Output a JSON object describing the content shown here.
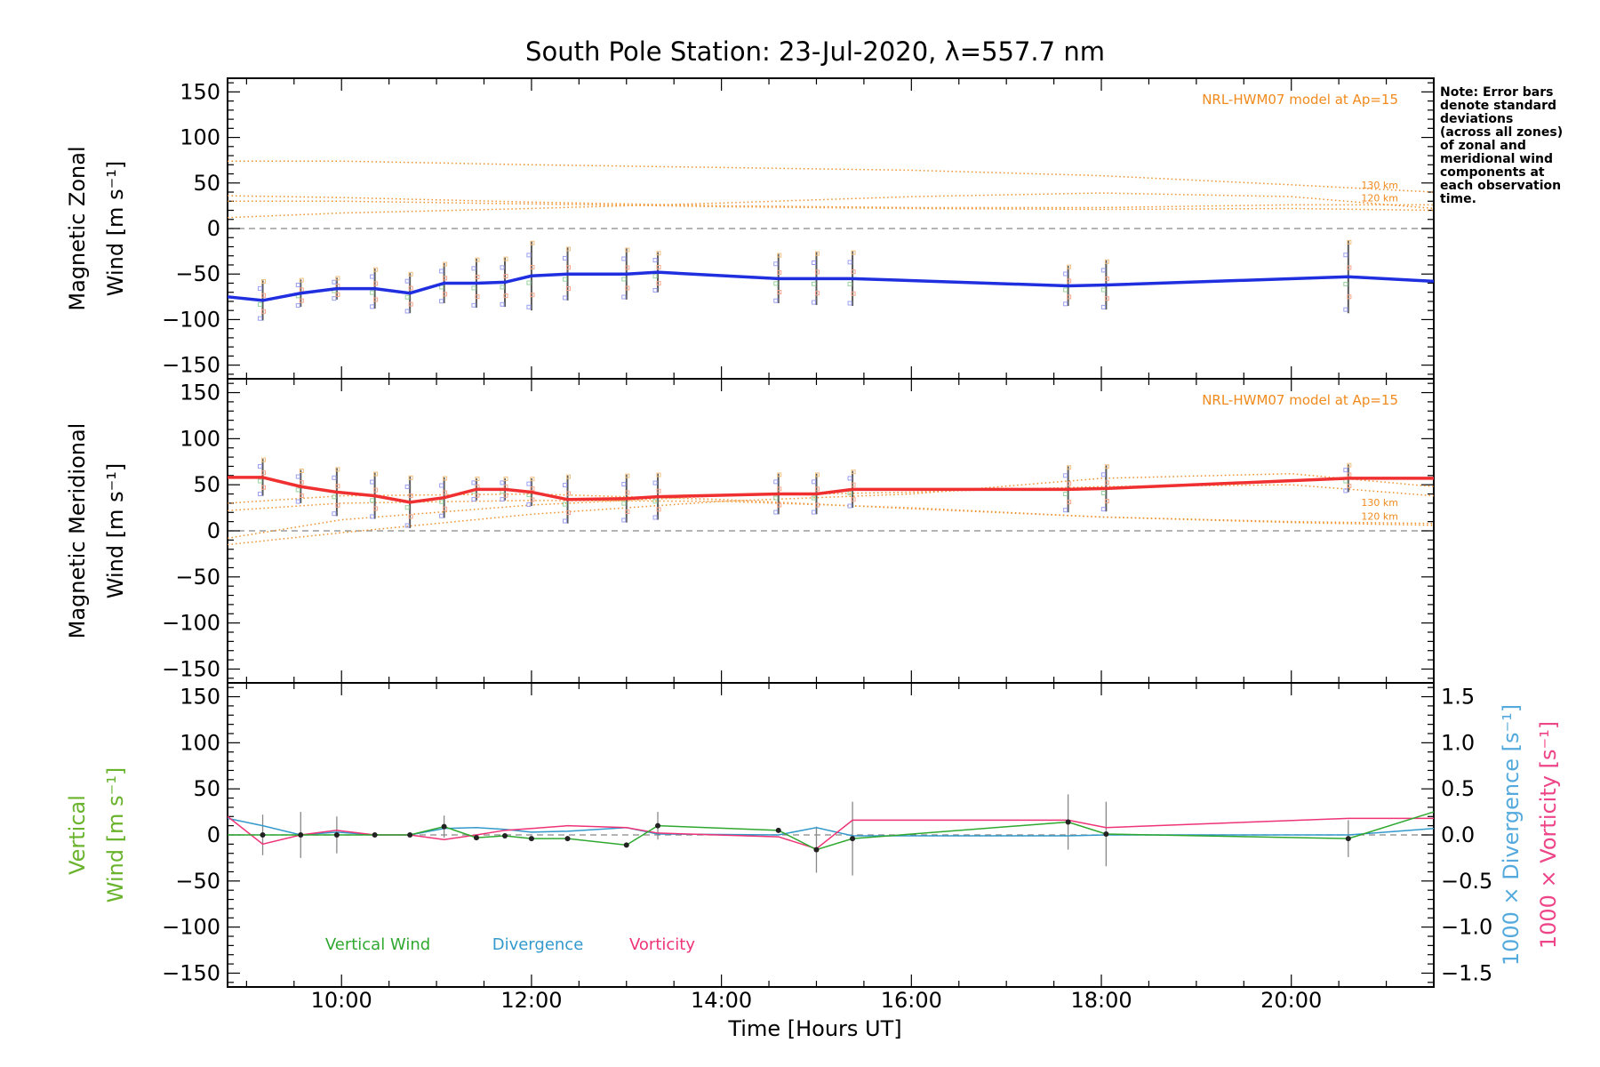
{
  "chart_data": {
    "title": "South Pole Station: 23-Jul-2020, λ=557.7 nm",
    "type": "line",
    "xlabel": "Time [Hours UT]",
    "xlim": [
      8.8,
      21.5
    ],
    "x_ticks": [
      10,
      12,
      14,
      16,
      18,
      20
    ],
    "x_tick_labels": [
      "10:00",
      "12:00",
      "14:00",
      "16:00",
      "18:00",
      "20:00"
    ],
    "y_ticks": [
      -150,
      -100,
      -50,
      0,
      50,
      100,
      150
    ],
    "y_tick_labels": [
      "−150",
      "−100",
      "−50",
      "0",
      "50",
      "100",
      "150"
    ],
    "times": [
      8.8,
      9.17,
      9.57,
      9.95,
      10.35,
      10.72,
      11.08,
      11.42,
      11.72,
      12.0,
      12.38,
      13.0,
      13.33,
      14.6,
      15.0,
      15.38,
      17.65,
      18.05,
      20.6,
      21.5
    ],
    "note": [
      "Note: Error bars",
      "denote standard",
      "deviations",
      "(across all zones)",
      "of zonal and",
      "meridional wind",
      "components at",
      "each observation",
      "time."
    ],
    "panels": [
      {
        "id": "zonal",
        "ylabel_line1": "Magnetic Zonal",
        "ylabel_line2": "Wind [m s⁻¹]",
        "ylim": [
          -165,
          165
        ],
        "model_label": "NRL-HWM07 model at Ap=15",
        "model_km_labels": [
          "130 km",
          "120 km"
        ],
        "series": {
          "name": "Zonal wind",
          "color": "#1f2fe0",
          "values": [
            -75,
            -79,
            -71,
            -66,
            -66,
            -71,
            -60,
            -60,
            -59,
            -52,
            -50,
            -50,
            -48,
            -55,
            -55,
            -55,
            -63,
            -62,
            -53,
            -58
          ],
          "err": [
            40,
            22,
            15,
            12,
            22,
            22,
            22,
            27,
            27,
            38,
            29,
            28,
            22,
            27,
            29,
            30,
            22,
            27,
            40,
            30
          ]
        },
        "model": [
          {
            "name": "model-1",
            "x": [
              8.8,
              10,
              12,
              14,
              16,
              18,
              20,
              21.5
            ],
            "values": [
              74,
              74,
              70,
              67,
              64,
              58,
              48,
              40
            ]
          },
          {
            "name": "model-2",
            "x": [
              8.8,
              10,
              12,
              14,
              16,
              18,
              20,
              21.5
            ],
            "values": [
              36,
              34,
              29,
              25,
              23,
              23,
              26,
              26
            ]
          },
          {
            "name": "model-3",
            "x": [
              8.8,
              10,
              12,
              14,
              16,
              18,
              20,
              21.5
            ],
            "values": [
              12,
              17,
              22,
              28,
              35,
              39,
              35,
              22
            ]
          },
          {
            "name": "model-4",
            "x": [
              8.8,
              10,
              12,
              14,
              16,
              18,
              20,
              21.5
            ],
            "values": [
              30,
              30,
              27,
              24,
              22,
              21,
              22,
              20
            ]
          }
        ]
      },
      {
        "id": "meridional",
        "ylabel_line1": "Magnetic Meridional",
        "ylabel_line2": "Wind [m s⁻¹]",
        "ylim": [
          -165,
          165
        ],
        "model_label": "NRL-HWM07 model at Ap=15",
        "model_km_labels": [
          "130 km",
          "120 km"
        ],
        "series": {
          "name": "Meridional wind",
          "color": "#f03030",
          "values": [
            58,
            58,
            48,
            42,
            38,
            31,
            36,
            45,
            45,
            42,
            34,
            35,
            37,
            40,
            40,
            45,
            45,
            46,
            57,
            57
          ],
          "err": [
            25,
            20,
            18,
            26,
            25,
            28,
            22,
            12,
            12,
            15,
            26,
            26,
            25,
            22,
            22,
            20,
            25,
            25,
            15,
            20
          ]
        },
        "model": [
          {
            "name": "model-1",
            "x": [
              8.8,
              10,
              12,
              14,
              16,
              18,
              20,
              21.5
            ],
            "values": [
              -15,
              -2,
              18,
              32,
              40,
              57,
              62,
              48
            ]
          },
          {
            "name": "model-2",
            "x": [
              8.8,
              10,
              12,
              14,
              16,
              18,
              20,
              21.5
            ],
            "values": [
              -8,
              12,
              28,
              38,
              42,
              48,
              50,
              38
            ]
          },
          {
            "name": "model-3",
            "x": [
              8.8,
              10,
              12,
              14,
              16,
              18,
              20,
              21.5
            ],
            "values": [
              22,
              30,
              33,
              32,
              25,
              15,
              9,
              6
            ]
          },
          {
            "name": "model-4",
            "x": [
              8.8,
              10,
              12,
              14,
              16,
              18,
              20,
              21.5
            ],
            "values": [
              30,
              38,
              40,
              34,
              24,
              15,
              10,
              8
            ]
          }
        ]
      },
      {
        "id": "vertical",
        "ylabel_line1": "Vertical",
        "ylabel_line2": "Wind [m s⁻¹]",
        "ylim": [
          -165,
          165
        ],
        "right_ylim": [
          -1.65,
          1.65
        ],
        "right_ticks": [
          -1.5,
          -1.0,
          -0.5,
          0.0,
          0.5,
          1.0,
          1.5
        ],
        "right_tick_labels": [
          "−1.5",
          "−1.0",
          "−0.5",
          "0.0",
          "0.5",
          "1.0",
          "1.5"
        ],
        "right_label_divergence": "1000 × Divergence [s⁻¹]",
        "right_label_vorticity": "1000 × Vorticity [s⁻¹]",
        "legend": [
          "Vertical Wind",
          "Divergence",
          "Vorticity"
        ],
        "vertical": {
          "name": "Vertical Wind",
          "color": "#2fa82f",
          "values": [
            0,
            0,
            0,
            0,
            0,
            0,
            9,
            -3,
            -1,
            -4,
            -4,
            -11,
            10,
            5,
            -16,
            -4,
            14,
            1,
            -4,
            25
          ],
          "err": [
            0,
            22,
            25,
            20,
            0,
            0,
            12,
            0,
            0,
            0,
            0,
            0,
            15,
            0,
            25,
            40,
            30,
            35,
            20,
            0
          ]
        },
        "divergence": {
          "name": "Divergence",
          "color": "#3399cc",
          "values": [
            0.18,
            0.1,
            0.0,
            0.03,
            0.0,
            0.0,
            0.07,
            0.08,
            0.06,
            0.03,
            0.04,
            0.08,
            0.01,
            0.0,
            0.08,
            -0.01,
            -0.01,
            0.0,
            0.0,
            0.07
          ]
        },
        "vorticity": {
          "name": "Vorticity",
          "color": "#ee3377",
          "values": [
            0.2,
            -0.1,
            0.0,
            0.05,
            0.0,
            0.0,
            -0.05,
            0.0,
            0.05,
            0.07,
            0.1,
            0.08,
            0.02,
            -0.02,
            -0.15,
            0.16,
            0.16,
            0.08,
            0.18,
            0.18
          ]
        }
      }
    ]
  }
}
